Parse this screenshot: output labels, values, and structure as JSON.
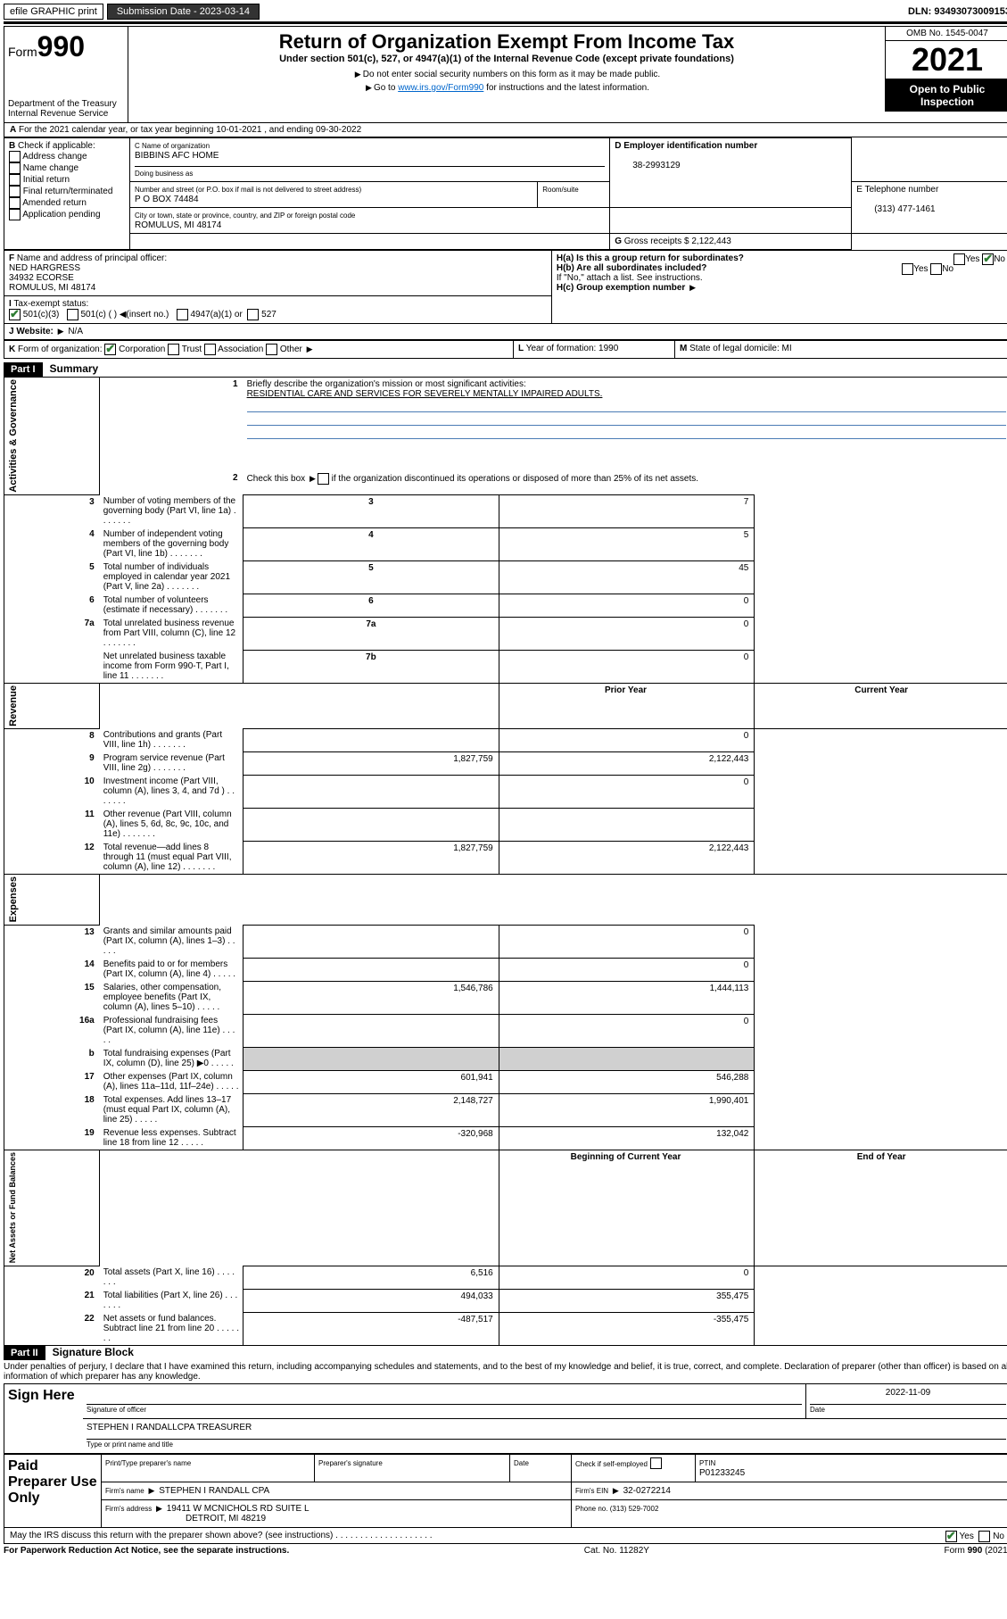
{
  "topbar": {
    "efile": "efile GRAPHIC print",
    "submission_label": "Submission Date - 2023-03-14",
    "dln_label": "DLN: 93493073009153"
  },
  "header": {
    "form_word": "Form",
    "form_num": "990",
    "dept": "Department of the Treasury",
    "irs": "Internal Revenue Service",
    "title": "Return of Organization Exempt From Income Tax",
    "subtitle": "Under section 501(c), 527, or 4947(a)(1) of the Internal Revenue Code (except private foundations)",
    "note1": "Do not enter social security numbers on this form as it may be made public.",
    "note2_pre": "Go to ",
    "note2_link": "www.irs.gov/Form990",
    "note2_post": " for instructions and the latest information.",
    "omb": "OMB No. 1545-0047",
    "year": "2021",
    "open": "Open to Public Inspection"
  },
  "period": {
    "a_label": "A",
    "text": "For the 2021 calendar year, or tax year beginning 10-01-2021    , and ending 09-30-2022"
  },
  "sectionB": {
    "label": "B",
    "check_label": "Check if applicable:",
    "opts": [
      "Address change",
      "Name change",
      "Initial return",
      "Final return/terminated",
      "Amended return",
      "Application pending"
    ]
  },
  "sectionC": {
    "name_label": "C Name of organization",
    "name": "BIBBINS AFC HOME",
    "dba_label": "Doing business as",
    "addr_label": "Number and street (or P.O. box if mail is not delivered to street address)",
    "room_label": "Room/suite",
    "addr": "P O BOX 74484",
    "city_label": "City or town, state or province, country, and ZIP or foreign postal code",
    "city": "ROMULUS, MI  48174"
  },
  "sectionD": {
    "label": "D Employer identification number",
    "ein": "38-2993129"
  },
  "sectionE": {
    "label": "E Telephone number",
    "phone": "(313) 477-1461"
  },
  "sectionG": {
    "label": "G",
    "text": "Gross receipts $ 2,122,443"
  },
  "sectionF": {
    "label": "F",
    "text": "Name and address of principal officer:",
    "name": "NED HARGRESS",
    "addr1": "34932 ECORSE",
    "addr2": "ROMULUS, MI  48174"
  },
  "sectionH": {
    "ha": "H(a)  Is this a group return for subordinates?",
    "hb": "H(b)  Are all subordinates included?",
    "hb_note": "If \"No,\" attach a list. See instructions.",
    "hc": "H(c)  Group exemption number",
    "yes": "Yes",
    "no": "No"
  },
  "sectionI": {
    "label": "I",
    "text": "Tax-exempt status:",
    "o1": "501(c)(3)",
    "o2": "501(c) (   )",
    "o2b": "(insert no.)",
    "o3": "4947(a)(1) or",
    "o4": "527"
  },
  "sectionJ": {
    "label": "J",
    "text": "Website:",
    "val": "N/A"
  },
  "sectionK": {
    "label": "K",
    "text": "Form of organization:",
    "o1": "Corporation",
    "o2": "Trust",
    "o3": "Association",
    "o4": "Other"
  },
  "sectionL": {
    "label": "L",
    "text": "Year of formation: 1990"
  },
  "sectionM": {
    "label": "M",
    "text": "State of legal domicile: MI"
  },
  "part1": {
    "header": "Part I",
    "title": "Summary",
    "l1_label": "1",
    "l1": "Briefly describe the organization's mission or most significant activities:",
    "l1_val": "RESIDENTIAL CARE AND SERVICES FOR SEVERELY MENTALLY IMPAIRED ADULTS.",
    "l2_label": "2",
    "l2": "Check this box      if the organization discontinued its operations or disposed of more than 25% of its net assets.",
    "side_gov": "Activities & Governance",
    "side_rev": "Revenue",
    "side_exp": "Expenses",
    "side_net": "Net Assets or Fund Balances",
    "prior": "Prior Year",
    "current": "Current Year",
    "boy": "Beginning of Current Year",
    "eoy": "End of Year",
    "lines_gov": [
      {
        "n": "3",
        "t": "Number of voting members of the governing body (Part VI, line 1a)",
        "box": "3",
        "v": "7"
      },
      {
        "n": "4",
        "t": "Number of independent voting members of the governing body (Part VI, line 1b)",
        "box": "4",
        "v": "5"
      },
      {
        "n": "5",
        "t": "Total number of individuals employed in calendar year 2021 (Part V, line 2a)",
        "box": "5",
        "v": "45"
      },
      {
        "n": "6",
        "t": "Total number of volunteers (estimate if necessary)",
        "box": "6",
        "v": "0"
      },
      {
        "n": "7a",
        "t": "Total unrelated business revenue from Part VIII, column (C), line 12",
        "box": "7a",
        "v": "0"
      },
      {
        "n": "",
        "t": "Net unrelated business taxable income from Form 990-T, Part I, line 11",
        "box": "7b",
        "v": "0"
      }
    ],
    "lines_rev": [
      {
        "n": "8",
        "t": "Contributions and grants (Part VIII, line 1h)",
        "p": "",
        "c": "0"
      },
      {
        "n": "9",
        "t": "Program service revenue (Part VIII, line 2g)",
        "p": "1,827,759",
        "c": "2,122,443"
      },
      {
        "n": "10",
        "t": "Investment income (Part VIII, column (A), lines 3, 4, and 7d )",
        "p": "",
        "c": "0"
      },
      {
        "n": "11",
        "t": "Other revenue (Part VIII, column (A), lines 5, 6d, 8c, 9c, 10c, and 11e)",
        "p": "",
        "c": ""
      },
      {
        "n": "12",
        "t": "Total revenue—add lines 8 through 11 (must equal Part VIII, column (A), line 12)",
        "p": "1,827,759",
        "c": "2,122,443"
      }
    ],
    "lines_exp": [
      {
        "n": "13",
        "t": "Grants and similar amounts paid (Part IX, column (A), lines 1–3)",
        "p": "",
        "c": "0"
      },
      {
        "n": "14",
        "t": "Benefits paid to or for members (Part IX, column (A), line 4)",
        "p": "",
        "c": "0"
      },
      {
        "n": "15",
        "t": "Salaries, other compensation, employee benefits (Part IX, column (A), lines 5–10)",
        "p": "1,546,786",
        "c": "1,444,113"
      },
      {
        "n": "16a",
        "t": "Professional fundraising fees (Part IX, column (A), line 11e)",
        "p": "",
        "c": "0"
      },
      {
        "n": "b",
        "t": "Total fundraising expenses (Part IX, column (D), line 25) ▶0",
        "p": "shade",
        "c": "shade"
      },
      {
        "n": "17",
        "t": "Other expenses (Part IX, column (A), lines 11a–11d, 11f–24e)",
        "p": "601,941",
        "c": "546,288"
      },
      {
        "n": "18",
        "t": "Total expenses. Add lines 13–17 (must equal Part IX, column (A), line 25)",
        "p": "2,148,727",
        "c": "1,990,401"
      },
      {
        "n": "19",
        "t": "Revenue less expenses. Subtract line 18 from line 12",
        "p": "-320,968",
        "c": "132,042"
      }
    ],
    "lines_net": [
      {
        "n": "20",
        "t": "Total assets (Part X, line 16)",
        "p": "6,516",
        "c": "0"
      },
      {
        "n": "21",
        "t": "Total liabilities (Part X, line 26)",
        "p": "494,033",
        "c": "355,475"
      },
      {
        "n": "22",
        "t": "Net assets or fund balances. Subtract line 21 from line 20",
        "p": "-487,517",
        "c": "-355,475"
      }
    ]
  },
  "part2": {
    "header": "Part II",
    "title": "Signature Block",
    "penalty": "Under penalties of perjury, I declare that I have examined this return, including accompanying schedules and statements, and to the best of my knowledge and belief, it is true, correct, and complete. Declaration of preparer (other than officer) is based on all information of which preparer has any knowledge.",
    "sign_here": "Sign Here",
    "sig_officer": "Signature of officer",
    "date": "Date",
    "date_val": "2022-11-09",
    "name_title": "STEPHEN I RANDALLCPA TREASURER",
    "type_name": "Type or print name and title",
    "paid": "Paid Preparer Use Only",
    "print_name": "Print/Type preparer's name",
    "prep_sig": "Preparer's signature",
    "check_self": "Check       if self-employed",
    "ptin_label": "PTIN",
    "ptin": "P01233245",
    "firm_name_label": "Firm's name",
    "firm_name": "STEPHEN I RANDALL CPA",
    "firm_ein_label": "Firm's EIN",
    "firm_ein": "32-0272214",
    "firm_addr_label": "Firm's address",
    "firm_addr1": "19411 W MCNICHOLS RD SUITE L",
    "firm_addr2": "DETROIT, MI  48219",
    "phone_label": "Phone no. (313) 529-7002",
    "may_irs": "May the IRS discuss this return with the preparer shown above? (see instructions)"
  },
  "footer": {
    "left": "For Paperwork Reduction Act Notice, see the separate instructions.",
    "mid": "Cat. No. 11282Y",
    "right": "Form 990 (2021)"
  }
}
